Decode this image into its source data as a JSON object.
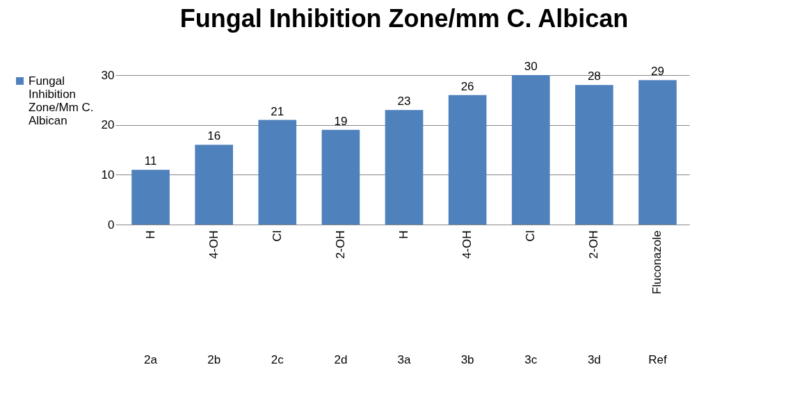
{
  "chart_data": {
    "type": "bar",
    "title": "Fungal Inhibition Zone/mm C. Albican",
    "categories": [
      "H",
      "4-OH",
      "Cl",
      "2-OH",
      "H",
      "4-OH",
      "Cl",
      "2-OH",
      "Fluconazole"
    ],
    "annotations": [
      "2a",
      "2b",
      "2c",
      "2d",
      "3a",
      "3b",
      "3c",
      "3d",
      "Ref"
    ],
    "series": [
      {
        "name": "Fungal Inhibition Zone/Mm C. Albican",
        "color": "#4f81bd",
        "values": [
          11,
          16,
          21,
          19,
          23,
          26,
          30,
          28,
          29
        ]
      }
    ],
    "ylim": [
      0,
      30
    ],
    "yticks": [
      0,
      10,
      20,
      30
    ],
    "grid": "y",
    "legend": "left",
    "data_labels": true
  }
}
